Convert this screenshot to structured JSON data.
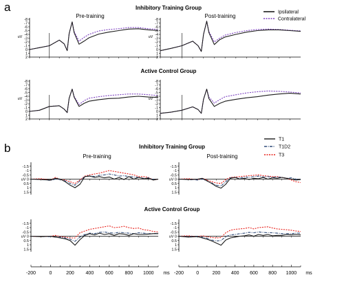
{
  "panel_a": {
    "letter": "a",
    "legend": [
      "Ipsilateral",
      "Contralateral"
    ],
    "groups": [
      "Inhibitory Training Group",
      "Active Control Group"
    ],
    "conditions": [
      "Pre-training",
      "Post-training"
    ],
    "ytick_labels": [
      "-8",
      "-7",
      "-6",
      "-5",
      "-4",
      "-3",
      "-2",
      "-1",
      "0",
      "1",
      "2"
    ],
    "yunit": "uV"
  },
  "panel_b": {
    "letter": "b",
    "legend": [
      "T1",
      "T1D2",
      "T3"
    ],
    "groups": [
      "Inhibitory Training Group",
      "Active Control Group"
    ],
    "conditions": [
      "Pre-training",
      "Post-training"
    ],
    "ytick_labels": [
      "-1.5",
      "-1",
      "-0.5",
      "uV 0",
      "0.5",
      "1",
      "1.5"
    ],
    "xtick_labels": [
      "-200",
      "0",
      "200",
      "400",
      "600",
      "800",
      "1000"
    ],
    "xunit": "ms"
  },
  "colors": {
    "ipsilateral": "#1a1a1a",
    "contralateral": "#7b3fbf",
    "T1": "#1a1a1a",
    "T1D2": "#2e4a78",
    "T3": "#e8201a"
  },
  "chart_data": [
    {
      "type": "line",
      "panel": "a",
      "group": "Inhibitory Training Group",
      "condition": "Pre-training",
      "xlim": [
        -200,
        1100
      ],
      "ylim": [
        2,
        -8
      ],
      "y_inverted": true,
      "x": [
        -200,
        -100,
        0,
        100,
        150,
        180,
        200,
        230,
        250,
        300,
        350,
        400,
        500,
        600,
        700,
        800,
        900,
        1000,
        1100
      ],
      "series": [
        {
          "name": "Ipsilateral",
          "values": [
            0,
            -0.5,
            -1,
            -2.5,
            -1.5,
            0.3,
            -4.2,
            -7.3,
            -4.5,
            -1.4,
            -2.2,
            -3.1,
            -4.1,
            -4.6,
            -5,
            -5.4,
            -5.5,
            -5.2,
            -5.0
          ]
        },
        {
          "name": "Contralateral",
          "values": [
            0,
            -0.5,
            -1,
            -2.5,
            -1.5,
            0.3,
            -4.2,
            -7.3,
            -4.8,
            -2.2,
            -3.2,
            -4.0,
            -4.9,
            -5.3,
            -5.5,
            -5.8,
            -5.8,
            -5.5,
            -5.3
          ]
        }
      ]
    },
    {
      "type": "line",
      "panel": "a",
      "group": "Inhibitory Training Group",
      "condition": "Post-training",
      "xlim": [
        -200,
        1100
      ],
      "ylim": [
        2,
        -8
      ],
      "y_inverted": true,
      "x": [
        -200,
        -100,
        0,
        100,
        150,
        180,
        200,
        230,
        250,
        300,
        350,
        400,
        500,
        600,
        700,
        800,
        900,
        1000,
        1100
      ],
      "series": [
        {
          "name": "Ipsilateral",
          "values": [
            0.3,
            -0.3,
            -1,
            -2.2,
            -1.0,
            0.5,
            -4.0,
            -7.5,
            -4.5,
            -1.3,
            -2.6,
            -3.3,
            -4.0,
            -4.6,
            -5.0,
            -5.2,
            -5.2,
            -5.0,
            -4.8
          ]
        },
        {
          "name": "Contralateral",
          "values": [
            0.3,
            -0.3,
            -1,
            -2.2,
            -1.0,
            0.5,
            -4.0,
            -7.5,
            -4.8,
            -2.0,
            -3.0,
            -3.8,
            -4.5,
            -5.0,
            -5.3,
            -5.4,
            -5.3,
            -5.1,
            -4.9
          ]
        }
      ]
    },
    {
      "type": "line",
      "panel": "a",
      "group": "Active Control Group",
      "condition": "Pre-training",
      "xlim": [
        -200,
        1100
      ],
      "ylim": [
        2,
        -8
      ],
      "y_inverted": true,
      "x": [
        -200,
        -100,
        0,
        100,
        150,
        180,
        200,
        230,
        250,
        300,
        350,
        400,
        500,
        600,
        700,
        800,
        900,
        1000,
        1100
      ],
      "series": [
        {
          "name": "Ipsilateral",
          "values": [
            0,
            -0.3,
            -1.3,
            -1.5,
            -0.6,
            0.3,
            -3.5,
            -5.9,
            -3.8,
            -1.3,
            -2.1,
            -2.7,
            -3.1,
            -3.4,
            -3.5,
            -3.8,
            -4.0,
            -3.8,
            -3.7
          ]
        },
        {
          "name": "Contralateral",
          "values": [
            0,
            -0.3,
            -1.3,
            -1.5,
            -0.6,
            0.3,
            -3.5,
            -5.9,
            -4.0,
            -1.8,
            -2.8,
            -3.5,
            -3.9,
            -4.2,
            -4.4,
            -4.6,
            -4.6,
            -4.4,
            -4.2
          ]
        }
      ]
    },
    {
      "type": "line",
      "panel": "a",
      "group": "Active Control Group",
      "condition": "Post-training",
      "xlim": [
        -200,
        1100
      ],
      "ylim": [
        2,
        -8
      ],
      "y_inverted": true,
      "x": [
        -200,
        -100,
        0,
        100,
        150,
        180,
        200,
        230,
        250,
        300,
        350,
        400,
        500,
        600,
        700,
        800,
        900,
        1000,
        1100
      ],
      "series": [
        {
          "name": "Ipsilateral",
          "values": [
            0.5,
            0.2,
            -0.3,
            -1.2,
            -0.5,
            0.5,
            -3.2,
            -5.9,
            -3.4,
            -1.3,
            -2.1,
            -2.7,
            -3.2,
            -3.6,
            -3.9,
            -4.3,
            -4.6,
            -4.8,
            -4.6
          ]
        },
        {
          "name": "Contralateral",
          "values": [
            0.5,
            0.2,
            -0.3,
            -1.2,
            -0.5,
            0.5,
            -3.2,
            -5.9,
            -3.8,
            -2.2,
            -3.1,
            -3.9,
            -4.4,
            -4.9,
            -5.2,
            -5.4,
            -5.3,
            -5.1,
            -4.9
          ]
        }
      ]
    },
    {
      "type": "line",
      "panel": "b",
      "group": "Inhibitory Training Group",
      "condition": "Pre-training",
      "xlim": [
        -200,
        1100
      ],
      "ylim": [
        1.8,
        -1.8
      ],
      "y_inverted": true,
      "x": [
        -200,
        -100,
        0,
        50,
        100,
        150,
        200,
        250,
        300,
        350,
        400,
        450,
        500,
        550,
        600,
        650,
        700,
        750,
        800,
        850,
        900,
        950,
        1000,
        1050,
        1100
      ],
      "series": [
        {
          "name": "T1",
          "values": [
            0.0,
            0.05,
            0.1,
            -0.1,
            0.0,
            0.3,
            0.7,
            1.0,
            0.6,
            -0.3,
            -0.35,
            -0.2,
            -0.3,
            -0.15,
            -0.25,
            0.0,
            -0.2,
            0.05,
            -0.3,
            0.0,
            -0.2,
            -0.05,
            -0.1,
            0.1,
            0.0
          ]
        },
        {
          "name": "T1D2",
          "values": [
            0.0,
            0.05,
            0.15,
            0.0,
            0.05,
            0.2,
            0.5,
            0.7,
            0.2,
            -0.3,
            -0.4,
            -0.3,
            -0.45,
            -0.5,
            -0.6,
            -0.5,
            -0.35,
            -0.4,
            -0.3,
            -0.25,
            -0.2,
            -0.1,
            -0.15,
            0.05,
            0.0
          ]
        },
        {
          "name": "T3",
          "values": [
            0.0,
            -0.05,
            0.1,
            -0.2,
            0.05,
            0.1,
            0.3,
            0.5,
            0.1,
            -0.35,
            -0.5,
            -0.6,
            -0.7,
            -0.85,
            -1.0,
            -0.9,
            -0.8,
            -0.7,
            -0.6,
            -0.5,
            -0.3,
            -0.3,
            -0.2,
            0.1,
            0.0
          ]
        }
      ]
    },
    {
      "type": "line",
      "panel": "b",
      "group": "Inhibitory Training Group",
      "condition": "Post-training",
      "xlim": [
        -200,
        1100
      ],
      "ylim": [
        1.8,
        -1.8
      ],
      "y_inverted": true,
      "x": [
        -200,
        -100,
        0,
        50,
        100,
        150,
        200,
        250,
        300,
        350,
        400,
        450,
        500,
        550,
        600,
        650,
        700,
        750,
        800,
        850,
        900,
        950,
        1000,
        1050,
        1100
      ],
      "series": [
        {
          "name": "T1",
          "values": [
            0.0,
            0.05,
            0.0,
            -0.1,
            0.2,
            0.5,
            0.85,
            1.05,
            0.6,
            -0.1,
            -0.2,
            0.0,
            -0.1,
            0.05,
            -0.1,
            -0.05,
            -0.2,
            0.0,
            -0.15,
            -0.1,
            -0.2,
            -0.1,
            0.0,
            0.1,
            0.05
          ]
        },
        {
          "name": "T1D2",
          "values": [
            0.0,
            0.05,
            0.1,
            0.0,
            0.2,
            0.45,
            0.7,
            0.8,
            0.3,
            -0.15,
            -0.2,
            -0.1,
            -0.25,
            -0.2,
            -0.3,
            -0.35,
            -0.25,
            -0.3,
            -0.2,
            -0.25,
            -0.2,
            -0.1,
            -0.15,
            0.0,
            0.0
          ]
        },
        {
          "name": "T3",
          "values": [
            0.0,
            -0.05,
            0.05,
            -0.1,
            0.1,
            0.3,
            0.45,
            0.5,
            0.05,
            -0.2,
            -0.25,
            -0.3,
            -0.35,
            -0.4,
            -0.45,
            -0.5,
            -0.4,
            -0.35,
            -0.3,
            -0.3,
            -0.2,
            -0.1,
            0.1,
            0.3,
            0.4
          ]
        }
      ]
    },
    {
      "type": "line",
      "panel": "b",
      "group": "Active Control Group",
      "condition": "Pre-training",
      "xlim": [
        -200,
        1100
      ],
      "ylim": [
        1.8,
        -1.8
      ],
      "y_inverted": true,
      "x": [
        -200,
        -100,
        0,
        50,
        100,
        150,
        200,
        250,
        300,
        350,
        400,
        450,
        500,
        550,
        600,
        650,
        700,
        750,
        800,
        850,
        900,
        950,
        1000,
        1050,
        1100
      ],
      "series": [
        {
          "name": "T1",
          "values": [
            0.0,
            0.05,
            0.0,
            0.1,
            0.2,
            0.3,
            0.5,
            1.05,
            0.4,
            -0.1,
            -0.3,
            -0.15,
            -0.35,
            -0.2,
            -0.3,
            -0.1,
            -0.3,
            -0.25,
            -0.1,
            -0.3,
            -0.2,
            -0.2,
            -0.25,
            -0.3,
            -0.3
          ]
        },
        {
          "name": "T1D2",
          "values": [
            0.0,
            0.05,
            0.05,
            0.1,
            0.1,
            0.2,
            0.35,
            0.6,
            0.1,
            -0.2,
            -0.35,
            -0.3,
            -0.45,
            -0.5,
            -0.4,
            -0.35,
            -0.45,
            -0.4,
            -0.35,
            -0.3,
            -0.4,
            -0.35,
            -0.3,
            -0.3,
            -0.35
          ]
        },
        {
          "name": "T3",
          "values": [
            0.0,
            0.05,
            0.0,
            -0.1,
            0.05,
            0.1,
            0.2,
            0.2,
            -0.4,
            -0.6,
            -0.8,
            -0.9,
            -1.0,
            -1.1,
            -1.2,
            -1.0,
            -1.05,
            -1.15,
            -1.0,
            -0.9,
            -0.95,
            -0.75,
            -0.7,
            -0.55,
            -0.5
          ]
        }
      ]
    },
    {
      "type": "line",
      "panel": "b",
      "group": "Active Control Group",
      "condition": "Post-training",
      "xlim": [
        -200,
        1100
      ],
      "ylim": [
        1.8,
        -1.8
      ],
      "y_inverted": true,
      "x": [
        -200,
        -100,
        0,
        50,
        100,
        150,
        200,
        250,
        300,
        350,
        400,
        450,
        500,
        550,
        600,
        650,
        700,
        750,
        800,
        850,
        900,
        950,
        1000,
        1050,
        1100
      ],
      "series": [
        {
          "name": "T1",
          "values": [
            0.0,
            0.1,
            0.05,
            0.2,
            0.35,
            0.55,
            0.8,
            1.05,
            0.45,
            0.2,
            0.1,
            0.0,
            -0.05,
            -0.15,
            0.0,
            -0.2,
            -0.1,
            -0.2,
            -0.05,
            -0.1,
            -0.1,
            -0.2,
            -0.15,
            -0.2,
            -0.15
          ]
        },
        {
          "name": "T1D2",
          "values": [
            0.0,
            0.05,
            0.0,
            0.1,
            0.25,
            0.45,
            0.55,
            0.5,
            0.05,
            -0.15,
            -0.2,
            -0.3,
            -0.35,
            -0.45,
            -0.4,
            -0.5,
            -0.45,
            -0.4,
            -0.4,
            -0.35,
            -0.3,
            -0.3,
            -0.3,
            -0.35,
            -0.35
          ]
        },
        {
          "name": "T3",
          "values": [
            0.0,
            -0.05,
            0.05,
            -0.05,
            0.05,
            0.15,
            0.2,
            0.15,
            -0.4,
            -0.7,
            -0.8,
            -0.85,
            -0.9,
            -1.0,
            -0.85,
            -1.0,
            -1.05,
            -1.1,
            -0.95,
            -0.85,
            -0.8,
            -0.75,
            -0.7,
            -0.6,
            -0.55
          ]
        }
      ]
    }
  ]
}
